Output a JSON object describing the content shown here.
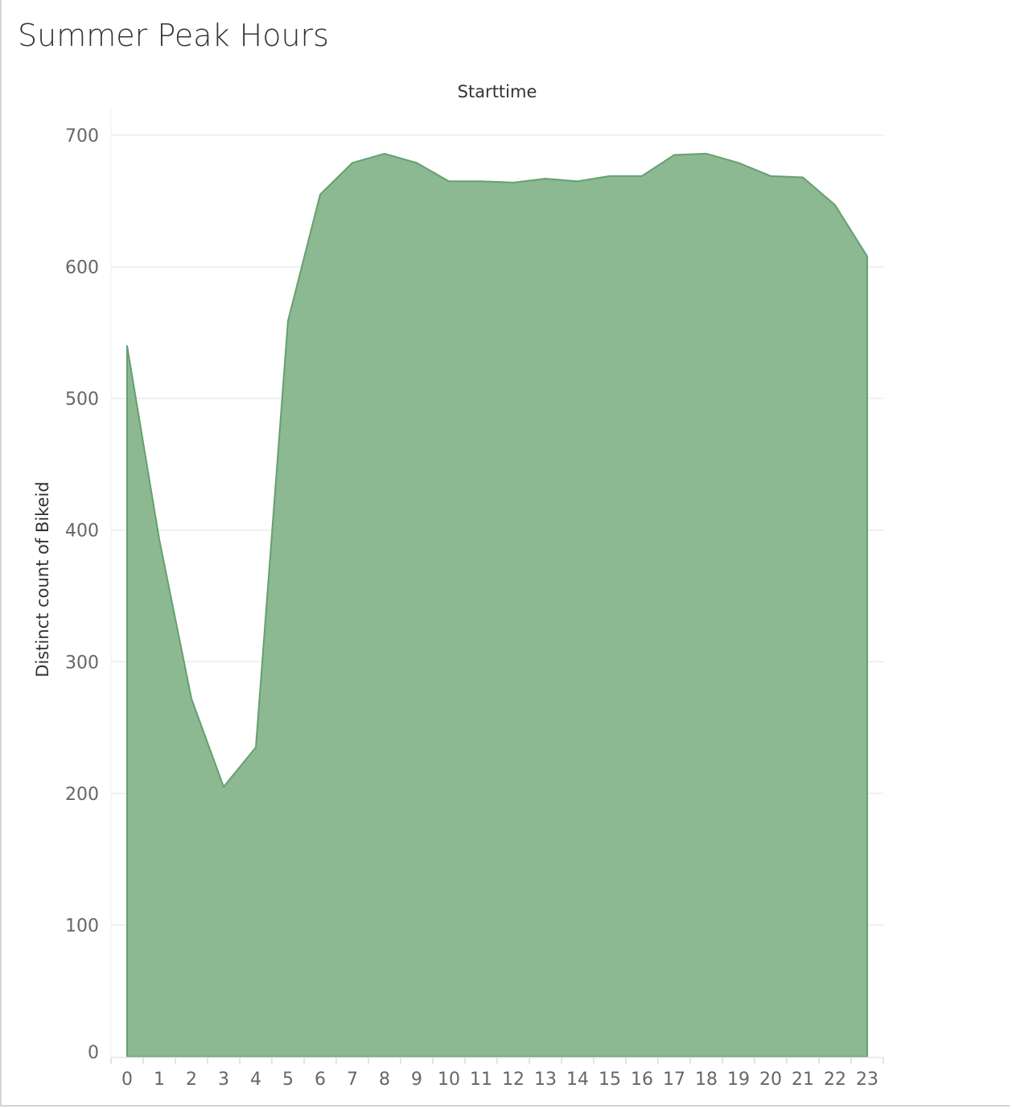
{
  "title": "Summer Peak Hours",
  "chart_data": {
    "type": "area",
    "title": "Summer Peak Hours",
    "top_axis_title": "Starttime",
    "xlabel": "",
    "ylabel": "Distinct count of Bikeid",
    "x": [
      0,
      1,
      2,
      3,
      4,
      5,
      6,
      7,
      8,
      9,
      10,
      11,
      12,
      13,
      14,
      15,
      16,
      17,
      18,
      19,
      20,
      21,
      22,
      23
    ],
    "x_tick_labels": [
      "0",
      "1",
      "2",
      "3",
      "4",
      "5",
      "6",
      "7",
      "8",
      "9",
      "10",
      "11",
      "12",
      "13",
      "14",
      "15",
      "16",
      "17",
      "18",
      "19",
      "20",
      "21",
      "22",
      "23"
    ],
    "series": [
      {
        "values": [
          540,
          393,
          272,
          205,
          235,
          559,
          655,
          679,
          686,
          679,
          665,
          665,
          664,
          667,
          665,
          669,
          669,
          685,
          686,
          679,
          669,
          668,
          647,
          608
        ]
      }
    ],
    "ylim": [
      0,
      700
    ],
    "y_ticks": [
      0,
      100,
      200,
      300,
      400,
      500,
      600,
      700
    ],
    "grid": true,
    "colors": {
      "fill": "#8cb892",
      "stroke": "#66a06f",
      "grid": "#ebebeb"
    }
  }
}
